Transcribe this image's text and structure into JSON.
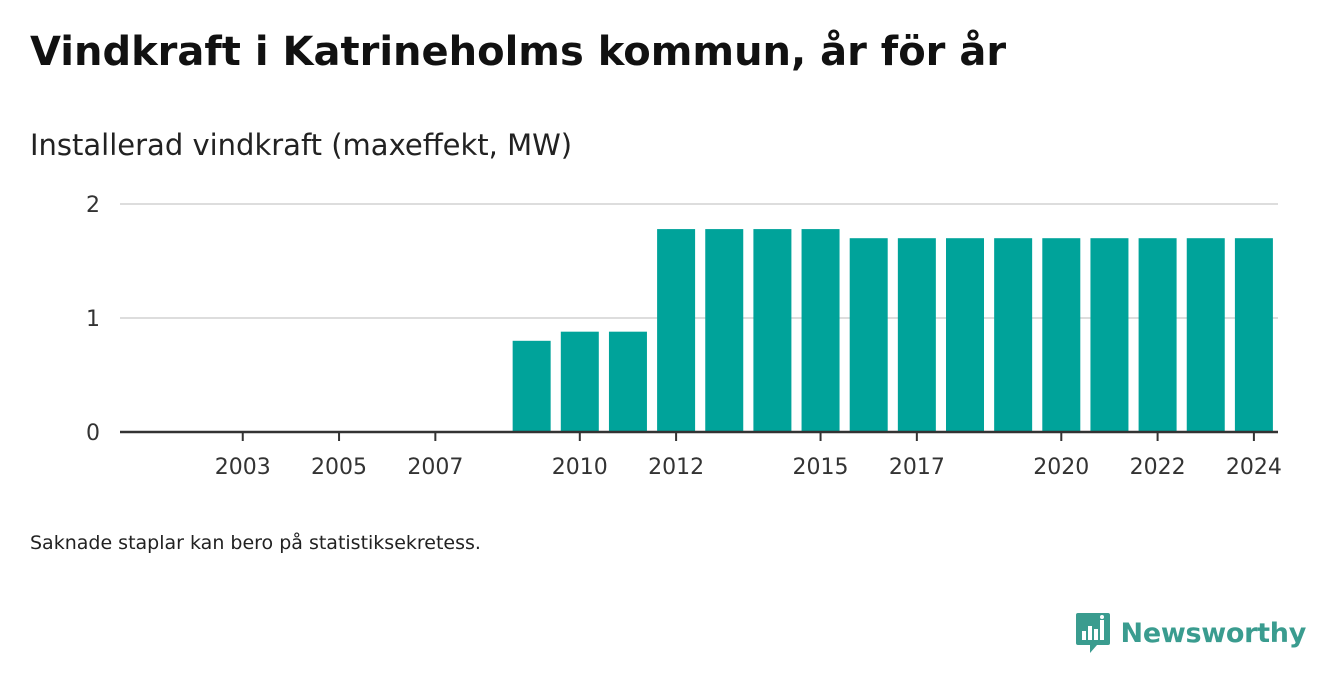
{
  "header": {
    "title": "Vindkraft i Katrineholms kommun, år för år",
    "subtitle": "Installerad vindkraft (maxeffekt, MW)"
  },
  "footer": {
    "note": "Saknade staplar kan bero på statistiksekretess.",
    "brand": "Newsworthy"
  },
  "colors": {
    "bar": "#00a39a",
    "grid": "#dddddd",
    "axis": "#333333",
    "brand": "#3a9c8f"
  },
  "chart_data": {
    "type": "bar",
    "title": "Vindkraft i Katrineholms kommun, år för år",
    "ylabel": "Installerad vindkraft (maxeffekt, MW)",
    "xlabel": "",
    "ylim": [
      0,
      2
    ],
    "yticks": [
      0,
      1,
      2
    ],
    "grid": true,
    "categories": [
      "2002",
      "2003",
      "2004",
      "2005",
      "2006",
      "2007",
      "2008",
      "2009",
      "2010",
      "2011",
      "2012",
      "2013",
      "2014",
      "2015",
      "2016",
      "2017",
      "2018",
      "2019",
      "2020",
      "2021",
      "2022",
      "2023",
      "2024"
    ],
    "values": [
      null,
      null,
      null,
      null,
      null,
      null,
      null,
      0.8,
      0.88,
      0.88,
      1.78,
      1.78,
      1.78,
      1.78,
      1.7,
      1.7,
      1.7,
      1.7,
      1.7,
      1.7,
      1.7,
      1.7,
      1.7
    ],
    "xtick_labels": [
      "2003",
      "2005",
      "2007",
      "2010",
      "2012",
      "2015",
      "2017",
      "2020",
      "2022",
      "2024"
    ]
  }
}
